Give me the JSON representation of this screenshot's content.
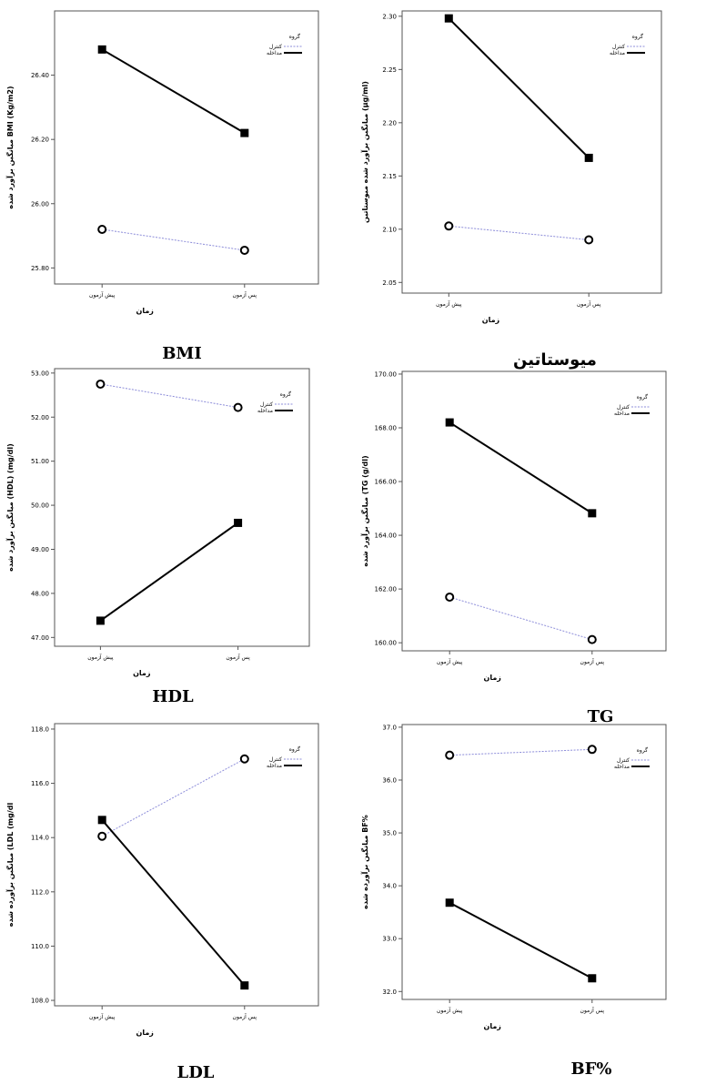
{
  "chart_data": [
    {
      "type": "line",
      "caption": "BMI",
      "ylabel": "میانگین برآورد شده BMI (Kg/m2)",
      "xlabel": "زمان",
      "categories": [
        "پیش آزمون",
        "پس آزمون"
      ],
      "legend_title": "گروه",
      "ylim": [
        25.75,
        26.6
      ],
      "yticks": [
        "25.80",
        "26.00",
        "26.20",
        "26.40"
      ],
      "yticks_num": [
        25.8,
        26.0,
        26.2,
        26.4
      ],
      "series": [
        {
          "name": "کنترل",
          "values": [
            25.92,
            25.855
          ],
          "color": "#8c8cd9",
          "style": "dotted",
          "marker": "circle"
        },
        {
          "name": "مداخله",
          "values": [
            26.48,
            26.22
          ],
          "color": "#000000",
          "style": "solid",
          "marker": "square"
        }
      ]
    },
    {
      "type": "line",
      "caption": "میوستاتین",
      "ylabel": "میانگین برآورد شده میوستاتین (µg/ml)",
      "xlabel": "زمان",
      "categories": [
        "پیش آزمون",
        "پس آزمون"
      ],
      "legend_title": "گروه",
      "ylim": [
        2.04,
        2.305
      ],
      "yticks": [
        "2.05",
        "2.10",
        "2.15",
        "2.20",
        "2.25",
        "2.30"
      ],
      "yticks_num": [
        2.05,
        2.1,
        2.15,
        2.2,
        2.25,
        2.3
      ],
      "series": [
        {
          "name": "کنترل",
          "values": [
            2.103,
            2.09
          ],
          "color": "#8c8cd9",
          "style": "dotted",
          "marker": "circle"
        },
        {
          "name": "مداخله",
          "values": [
            2.298,
            2.167
          ],
          "color": "#000000",
          "style": "solid",
          "marker": "square"
        }
      ]
    },
    {
      "type": "line",
      "caption": "HDL",
      "ylabel": "میانگین برآورد شده (HDL) (mg/dl)",
      "xlabel": "زمان",
      "categories": [
        "پیش آزمون",
        "پس آزمون"
      ],
      "legend_title": "گروه",
      "ylim": [
        46.8,
        53.1
      ],
      "yticks": [
        "47.00",
        "48.00",
        "49.00",
        "50.00",
        "51.00",
        "52.00",
        "53.00"
      ],
      "yticks_num": [
        47,
        48,
        49,
        50,
        51,
        52,
        53
      ],
      "series": [
        {
          "name": "کنترل",
          "values": [
            52.75,
            52.22
          ],
          "color": "#8c8cd9",
          "style": "dotted",
          "marker": "circle"
        },
        {
          "name": "مداخله",
          "values": [
            47.38,
            49.6
          ],
          "color": "#000000",
          "style": "solid",
          "marker": "square"
        }
      ]
    },
    {
      "type": "line",
      "caption": "TG",
      "ylabel": "میانگین برآورد شده (TG (g/dl)",
      "xlabel": "زمان",
      "categories": [
        "پیش آزمون",
        "پس آزمون"
      ],
      "legend_title": "گروه",
      "ylim": [
        159.7,
        170.1
      ],
      "yticks": [
        "160.00",
        "162.00",
        "164.00",
        "166.00",
        "168.00",
        "170.00"
      ],
      "yticks_num": [
        160,
        162,
        164,
        166,
        168,
        170
      ],
      "series": [
        {
          "name": "کنترل",
          "values": [
            161.7,
            160.12
          ],
          "color": "#8c8cd9",
          "style": "dotted",
          "marker": "circle"
        },
        {
          "name": "مداخله",
          "values": [
            168.2,
            164.82
          ],
          "color": "#000000",
          "style": "solid",
          "marker": "square"
        }
      ]
    },
    {
      "type": "line",
      "caption": "LDL",
      "ylabel": "میانگین برآورده شده (LDL (mg/dl",
      "xlabel": "زمان",
      "categories": [
        "پیش آزمون",
        "پس آزمون"
      ],
      "legend_title": "گروه",
      "ylim": [
        107.8,
        118.2
      ],
      "yticks": [
        "108.0",
        "110.0",
        "112.0",
        "114.0",
        "116.0",
        "118.0"
      ],
      "yticks_num": [
        108,
        110,
        112,
        114,
        116,
        118
      ],
      "series": [
        {
          "name": "کنترل",
          "values": [
            114.05,
            116.9
          ],
          "color": "#8c8cd9",
          "style": "dotted",
          "marker": "circle"
        },
        {
          "name": "مداخله",
          "values": [
            114.65,
            108.55
          ],
          "color": "#000000",
          "style": "solid",
          "marker": "square"
        }
      ]
    },
    {
      "type": "line",
      "caption": "BF%",
      "ylabel": "میانگین برآورده شده BF%",
      "xlabel": "زمان",
      "categories": [
        "پیش آزمون",
        "پس آزمون"
      ],
      "legend_title": "گروه",
      "ylim": [
        31.85,
        37.05
      ],
      "yticks": [
        "32.0",
        "33.0",
        "34.0",
        "35.0",
        "36.0",
        "37.0"
      ],
      "yticks_num": [
        32,
        33,
        34,
        35,
        36,
        37
      ],
      "series": [
        {
          "name": "کنترل",
          "values": [
            36.47,
            36.58
          ],
          "color": "#8c8cd9",
          "style": "dotted",
          "marker": "circle"
        },
        {
          "name": "مداخله",
          "values": [
            33.68,
            32.25
          ],
          "color": "#000000",
          "style": "solid",
          "marker": "square"
        }
      ]
    }
  ]
}
